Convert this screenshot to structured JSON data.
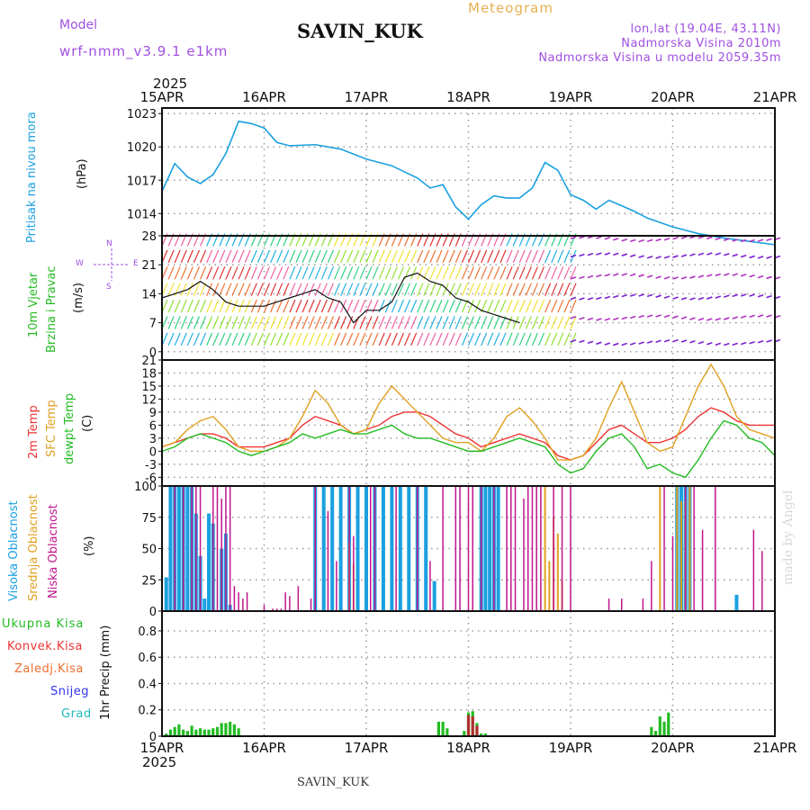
{
  "header": {
    "model_label": "Model",
    "model_name": "wrf-nmm_v3.9.1  e1km",
    "station": "SAVIN_KUK",
    "title": "Meteogram",
    "lonlat": "lon,lat (19.04E, 43.11N)",
    "elevation": "Nadmorska Visina 2010m",
    "model_elevation": "Nadmorska Visina u modelu 2059.35m",
    "year_top": "2025",
    "year_bottom": "2025",
    "footer": "SAVIN_KUK",
    "credit": "made by Angel"
  },
  "colors": {
    "pressure": "#1aa0e0",
    "precip": "#22bb22",
    "low_cloud": "#c0168c",
    "mid_cloud": "#e0a020",
    "high_cloud": "#1aa0e0",
    "temp2m": "#ee3333",
    "sfc": "#e0a020",
    "dewpt": "#22bb22",
    "grid": "#999999",
    "header_purple": "#a020f0",
    "title_orange": "#e8b050"
  },
  "chart_data": [
    {
      "type": "line",
      "panel": "pressure",
      "ylabel_left": "Pritisak na nivou mora",
      "unit": "(hPa)",
      "x_ticks": [
        "15APR",
        "16APR",
        "17APR",
        "18APR",
        "19APR",
        "20APR",
        "21APR"
      ],
      "yticks": [
        1014,
        1017,
        1020,
        1023
      ],
      "ylim": [
        1012,
        1023.5
      ],
      "x_hours": [
        0,
        3,
        6,
        9,
        12,
        15,
        18,
        21,
        24,
        27,
        30,
        36,
        42,
        48,
        54,
        60,
        63,
        66,
        69,
        72,
        75,
        78,
        81,
        84,
        87,
        90,
        93,
        96,
        99,
        102,
        105,
        108,
        111,
        114,
        120,
        126,
        132,
        138,
        144
      ],
      "series": [
        {
          "values": [
            1016.0,
            1018.5,
            1017.3,
            1016.7,
            1017.5,
            1019.4,
            1022.3,
            1022.1,
            1021.7,
            1020.4,
            1020.1,
            1020.2,
            1019.8,
            1018.9,
            1018.3,
            1017.2,
            1016.3,
            1016.6,
            1014.6,
            1013.5,
            1014.8,
            1015.6,
            1015.4,
            1015.4,
            1016.3,
            1018.6,
            1017.9,
            1015.7,
            1015.2,
            1014.4,
            1015.2,
            1014.7,
            1014.2,
            1013.6,
            1012.8,
            1012.2,
            1011.8,
            1011.5,
            1011.2
          ]
        }
      ]
    },
    {
      "type": "line",
      "panel": "wind",
      "ylabel_left": [
        "10m Vjetar",
        "Brzina i Pravac"
      ],
      "unit": "(m/s)",
      "compass": {
        "n": "N",
        "w": "W",
        "e": "E",
        "s": "S"
      },
      "yticks": [
        0,
        7,
        14,
        21,
        28
      ],
      "ylim": [
        -2,
        28
      ],
      "x_hours": [
        0,
        3,
        6,
        9,
        12,
        15,
        18,
        21,
        24,
        27,
        30,
        33,
        36,
        39,
        42,
        45,
        48,
        51,
        54,
        57,
        60,
        63,
        66,
        69,
        72,
        75,
        78,
        81,
        84
      ],
      "series": [
        {
          "values": [
            13,
            14,
            15,
            17,
            15,
            12,
            11,
            11,
            11,
            12,
            13,
            14,
            15,
            13,
            12,
            7,
            10,
            10,
            12,
            18,
            19,
            17,
            16,
            13,
            12,
            10,
            9,
            8,
            7
          ]
        }
      ]
    },
    {
      "type": "line",
      "panel": "temperature",
      "ylabel_left": [
        "2m Temp",
        "SFC Temp",
        "dewpt Temp"
      ],
      "unit": "(C)",
      "yticks": [
        -6,
        -3,
        0,
        3,
        6,
        9,
        12,
        15,
        18,
        21
      ],
      "ylim": [
        -8,
        21
      ],
      "x_hours": [
        0,
        3,
        6,
        9,
        12,
        15,
        18,
        21,
        24,
        27,
        30,
        33,
        36,
        39,
        42,
        45,
        48,
        51,
        54,
        57,
        60,
        63,
        66,
        69,
        72,
        75,
        78,
        81,
        84,
        87,
        90,
        93,
        96,
        99,
        102,
        105,
        108,
        111,
        114,
        117,
        120,
        123,
        126,
        129,
        132,
        135,
        138,
        141,
        144
      ],
      "series": [
        {
          "name": "2m Temp",
          "values": [
            1,
            2,
            3,
            4,
            4,
            3,
            1,
            1,
            1,
            2,
            3,
            6,
            8,
            7,
            6,
            4,
            5,
            6,
            8,
            9,
            9,
            8,
            6,
            4,
            3,
            1,
            2,
            3,
            4,
            3,
            2,
            -1,
            -2,
            -1,
            2,
            5,
            6,
            4,
            2,
            2,
            3,
            5,
            8,
            10,
            9,
            7,
            6,
            6,
            6
          ]
        },
        {
          "name": "SFC Temp",
          "values": [
            1,
            2,
            5,
            7,
            8,
            5,
            1,
            0,
            0,
            1,
            3,
            8,
            14,
            11,
            6,
            4,
            5,
            11,
            15,
            12,
            9,
            6,
            3,
            2,
            2,
            0,
            3,
            8,
            10,
            7,
            3,
            -2,
            -2,
            -1,
            3,
            10,
            16,
            9,
            2,
            0,
            1,
            8,
            15,
            20,
            15,
            8,
            5,
            4,
            3
          ]
        },
        {
          "name": "dewpt Temp",
          "values": [
            0,
            1,
            3,
            4,
            3,
            2,
            0,
            -1,
            0,
            1,
            2,
            4,
            3,
            4,
            5,
            4,
            4,
            5,
            6,
            4,
            3,
            3,
            2,
            1,
            0,
            0,
            1,
            2,
            3,
            2,
            1,
            -3,
            -5,
            -4,
            0,
            3,
            4,
            1,
            -4,
            -3,
            -5,
            -6,
            -2,
            3,
            7,
            6,
            3,
            2,
            -1
          ]
        }
      ]
    },
    {
      "type": "bar",
      "panel": "cloud",
      "ylabel_left": [
        "Visoka Oblacnost",
        "Srednja Oblacnost",
        "Niska Oblacnost"
      ],
      "unit": "(%)",
      "yticks": [
        0,
        25,
        50,
        75,
        100
      ],
      "ylim": [
        0,
        100
      ],
      "series": [
        {
          "name": "Visoka Oblacnost",
          "x_hours": [
            1,
            2,
            3,
            4,
            5,
            6,
            7,
            8,
            9,
            10,
            11,
            12,
            14,
            15,
            16,
            17,
            18,
            36,
            38,
            40,
            42,
            44,
            46,
            48,
            50,
            52,
            54,
            56,
            58,
            60,
            62,
            64,
            75,
            76,
            77,
            78,
            79,
            121,
            122,
            123,
            124,
            135
          ],
          "values": [
            27,
            100,
            100,
            100,
            100,
            100,
            100,
            78,
            44,
            10,
            78,
            70,
            50,
            62,
            5,
            0,
            0,
            100,
            100,
            100,
            100,
            100,
            100,
            100,
            100,
            100,
            100,
            100,
            100,
            100,
            100,
            24,
            100,
            100,
            100,
            100,
            100,
            100,
            100,
            100,
            100,
            13
          ]
        },
        {
          "name": "Srednja Oblacnost",
          "x_hours": [
            44,
            45,
            90,
            91,
            92,
            93,
            94,
            117,
            121,
            122,
            123,
            124
          ],
          "values": [
            55,
            38,
            100,
            40,
            75,
            62,
            25,
            100,
            100,
            88,
            88,
            100
          ]
        },
        {
          "name": "Niska Oblacnost",
          "x_hours": [
            3,
            5,
            7,
            8,
            9,
            12,
            13,
            14,
            15,
            16,
            17,
            18,
            19,
            20,
            24,
            26,
            27,
            28,
            29,
            30,
            32,
            35,
            36,
            39,
            41,
            44,
            45,
            49,
            50,
            55,
            60,
            63,
            66,
            69,
            70,
            72,
            73,
            75,
            78,
            81,
            82,
            83,
            85,
            86,
            87,
            88,
            89,
            92,
            94,
            96,
            105,
            108,
            113,
            115,
            118,
            120,
            123,
            125,
            127,
            130,
            139,
            141
          ],
          "values": [
            100,
            100,
            100,
            100,
            100,
            100,
            100,
            90,
            100,
            100,
            20,
            15,
            10,
            15,
            5,
            2,
            2,
            2,
            15,
            12,
            20,
            10,
            100,
            80,
            40,
            100,
            60,
            100,
            100,
            100,
            100,
            40,
            100,
            100,
            100,
            100,
            100,
            100,
            100,
            100,
            100,
            100,
            90,
            100,
            100,
            100,
            100,
            100,
            100,
            100,
            10,
            10,
            10,
            40,
            100,
            60,
            100,
            100,
            65,
            100,
            65,
            48
          ]
        }
      ]
    },
    {
      "type": "bar",
      "panel": "precip",
      "ylabel_left": "1hr Precip (mm)",
      "legend": [
        "Ukupna Kisa",
        "Konvek.Kisa",
        "Zaledj.Kisa",
        "Snijeg",
        "Grad"
      ],
      "legend_colors": [
        "#22bb22",
        "#ee3333",
        "#ee7030",
        "#3333ee",
        "#22bbbb"
      ],
      "yticks": [
        0,
        0.2,
        0.4,
        0.6,
        0.8
      ],
      "ylim": [
        0,
        0.95
      ],
      "series": [
        {
          "name": "Ukupna Kisa",
          "x_hours": [
            1,
            2,
            3,
            4,
            5,
            6,
            7,
            8,
            9,
            10,
            11,
            12,
            13,
            14,
            15,
            16,
            17,
            18,
            65,
            66,
            67,
            71,
            72,
            73,
            74,
            75,
            76,
            115,
            116,
            117,
            118,
            119
          ],
          "values": [
            0.02,
            0.05,
            0.07,
            0.09,
            0.05,
            0.04,
            0.08,
            0.05,
            0.06,
            0.05,
            0.05,
            0.06,
            0.07,
            0.1,
            0.1,
            0.11,
            0.09,
            0.06,
            0.11,
            0.11,
            0.06,
            0.04,
            0.18,
            0.19,
            0.1,
            0.02,
            0.02,
            0.07,
            0.04,
            0.15,
            0.11,
            0.18
          ]
        },
        {
          "name": "Konvek.Kisa",
          "x_hours": [
            72,
            73,
            74
          ],
          "values": [
            0.16,
            0.15,
            0.08
          ]
        }
      ]
    }
  ]
}
